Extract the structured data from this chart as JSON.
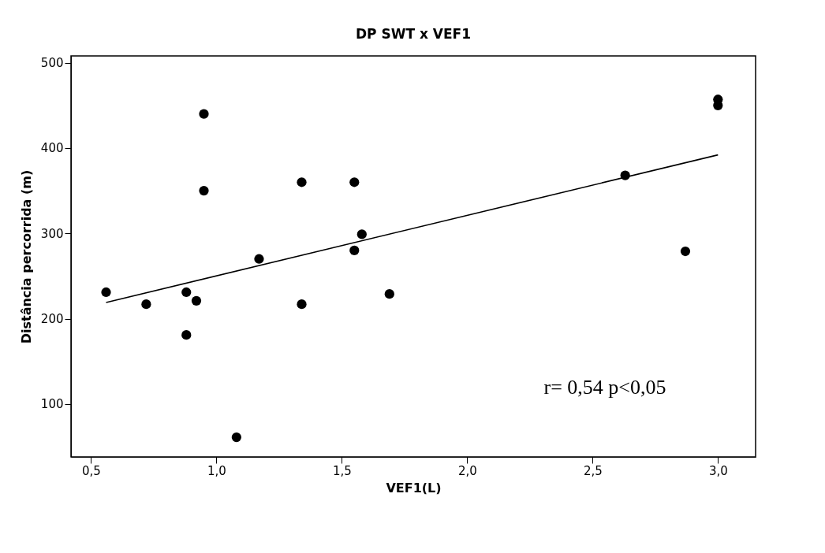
{
  "chart_data": {
    "type": "scatter",
    "title": "DP SWT x VEF1",
    "xlabel": "VEF1(L)",
    "ylabel": "Distância percorrida  (m)",
    "xlim": [
      0.42,
      3.15
    ],
    "ylim": [
      38,
      508
    ],
    "xticks": [
      {
        "value": 0.5,
        "label": "0,5"
      },
      {
        "value": 1.0,
        "label": "1,0"
      },
      {
        "value": 1.5,
        "label": "1,5"
      },
      {
        "value": 2.0,
        "label": "2,0"
      },
      {
        "value": 2.5,
        "label": "2,5"
      },
      {
        "value": 3.0,
        "label": "3,0"
      }
    ],
    "yticks": [
      100,
      200,
      300,
      400,
      500
    ],
    "grid": false,
    "marker": "circle",
    "annotations": [
      "r= 0,54 p<0,05"
    ],
    "series": [
      {
        "color": "#000000",
        "x": [
          0.56,
          0.72,
          0.88,
          0.92,
          0.88,
          0.95,
          0.95,
          1.08,
          1.17,
          1.34,
          1.34,
          1.55,
          1.55,
          1.58,
          1.69,
          2.63,
          2.87,
          3.0,
          3.0
        ],
        "values": [
          231,
          217,
          231,
          221,
          181,
          440,
          350,
          61,
          270,
          360,
          217,
          360,
          280,
          299,
          229,
          368,
          279,
          457,
          450
        ]
      },
      {
        "type": "line",
        "color": "#000000",
        "marker": "none",
        "line_style": "solid",
        "x": [
          0.56,
          3.0
        ],
        "values": [
          219,
          392
        ]
      }
    ]
  }
}
